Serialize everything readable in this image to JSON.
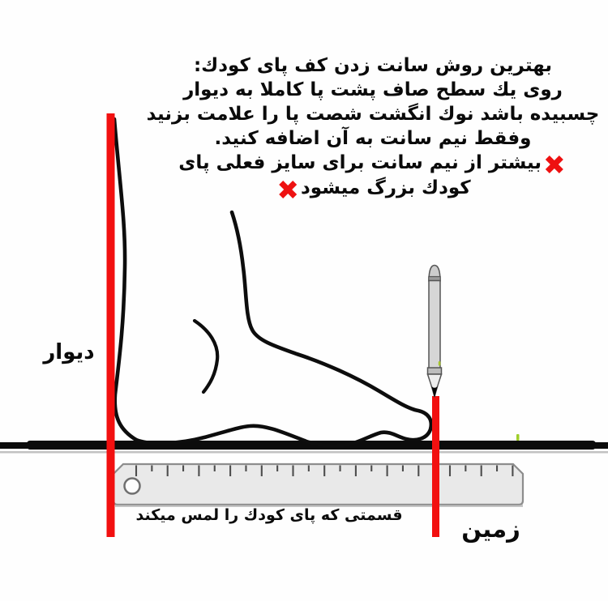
{
  "instructions": {
    "line1": "بهترین روش سانت زدن كف پای كودك:",
    "line2": "روی یك سطح صاف پشت پا كاملا به دیوار",
    "line3": "چسبیده باشد نوك انگشت شصت پا را علامت بزنید",
    "line4": "وفقط نیم سانت به آن اضافه كنید.",
    "line5": "بیشتر از نیم سانت برای سایز فعلی پای",
    "line6": "كودك بزرگ میشود"
  },
  "labels": {
    "wall": "دیوار",
    "ground": "زمین",
    "ruler_caption": "قسمتی كه پای كودك را لمس میكند"
  },
  "icons": {
    "error_cross": "✖",
    "pencil": "vertical gray pencil marking toe position",
    "ruler": "horizontal ruler under the foot",
    "foot": "line drawing of a child foot, heel against wall"
  },
  "colors": {
    "accent_red": "#f21010",
    "line_black": "#0d0d0d",
    "ruler_fill": "#e9e9e9",
    "pencil_fill": "#d6d6d6",
    "highlight_green": "#9fce2a"
  }
}
